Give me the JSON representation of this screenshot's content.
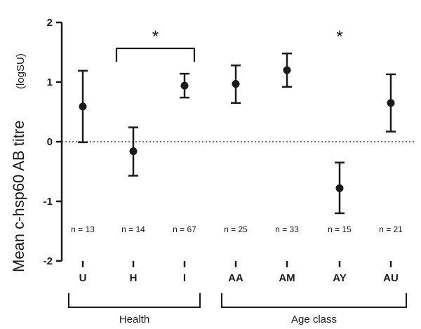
{
  "chart_data": {
    "type": "scatter",
    "ylabel": "Mean c-hsp60 AB titre",
    "ylabel_unit": "(logSU)",
    "ylim": [
      -2,
      2
    ],
    "yticks": [
      "2",
      "1",
      "0",
      "-1",
      "-2"
    ],
    "reference_line": {
      "y": 0,
      "style": "dotted"
    },
    "categories": [
      "U",
      "H",
      "I",
      "AA",
      "AM",
      "AY",
      "AU"
    ],
    "points": [
      {
        "category": "U",
        "mean": 0.59,
        "lower": -0.01,
        "upper": 1.19,
        "n_label": "n = 13"
      },
      {
        "category": "H",
        "mean": -0.16,
        "lower": -0.57,
        "upper": 0.24,
        "n_label": "n = 14"
      },
      {
        "category": "I",
        "mean": 0.94,
        "lower": 0.74,
        "upper": 1.14,
        "n_label": "n = 67"
      },
      {
        "category": "AA",
        "mean": 0.97,
        "lower": 0.65,
        "upper": 1.28,
        "n_label": "n = 25"
      },
      {
        "category": "AM",
        "mean": 1.2,
        "lower": 0.92,
        "upper": 1.48,
        "n_label": "n = 33"
      },
      {
        "category": "AY",
        "mean": -0.78,
        "lower": -1.2,
        "upper": -0.35,
        "n_label": "n = 15"
      },
      {
        "category": "AU",
        "mean": 0.65,
        "lower": 0.17,
        "upper": 1.13,
        "n_label": "n = 21"
      }
    ],
    "groups": [
      {
        "label": "Health",
        "from": "U",
        "to": "I"
      },
      {
        "label": "Age class",
        "from": "AA",
        "to": "AU"
      }
    ],
    "significance": [
      {
        "type": "bracket",
        "from": "H",
        "to": "I",
        "label": "*"
      },
      {
        "type": "star",
        "at": "AY",
        "label": "*"
      }
    ]
  }
}
